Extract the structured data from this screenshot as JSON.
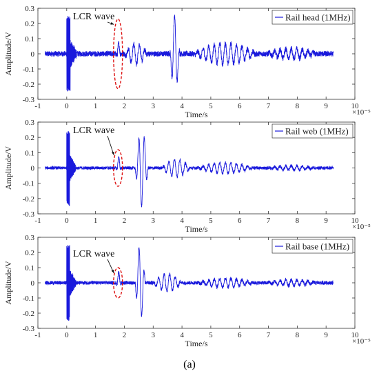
{
  "caption": "(a)",
  "chart_data": [
    {
      "type": "line",
      "xlabel": "Time/s",
      "ylabel": "Amplitude/V",
      "x_exponent": "×10⁻⁵",
      "xlim": [
        -1,
        10
      ],
      "ylim": [
        -0.3,
        0.3
      ],
      "xticks": [
        -1,
        0,
        1,
        2,
        3,
        4,
        5,
        6,
        7,
        8,
        9,
        10
      ],
      "yticks": [
        0.3,
        0.2,
        0.1,
        0,
        -0.1,
        -0.2,
        -0.3
      ],
      "series": [
        {
          "name": "Rail head (1MHz)",
          "color": "#1a1adc"
        }
      ],
      "annotation": {
        "text": "LCR wave",
        "at_x": 1.78,
        "ellipse_half_height": 0.23
      },
      "waveform": {
        "t_start": -0.75,
        "t_end": 9.25,
        "noise_amplitude": 0.018,
        "pulse": {
          "t": [
            0.0,
            0.12
          ],
          "amplitude": 0.25
        },
        "packets": [
          {
            "center": 1.8,
            "width": 0.15,
            "amplitude": 0.07
          },
          {
            "center": 2.4,
            "width": 0.8,
            "amplitude": 0.07
          },
          {
            "center": 3.75,
            "width": 0.35,
            "amplitude": 0.25
          },
          {
            "center": 5.5,
            "width": 2.2,
            "amplitude": 0.07
          },
          {
            "center": 7.8,
            "width": 1.8,
            "amplitude": 0.035
          }
        ]
      }
    },
    {
      "type": "line",
      "xlabel": "Time/s",
      "ylabel": "Amplitude/V",
      "x_exponent": "×10⁻⁵",
      "xlim": [
        -1,
        10
      ],
      "ylim": [
        -0.3,
        0.3
      ],
      "xticks": [
        -1,
        0,
        1,
        2,
        3,
        4,
        5,
        6,
        7,
        8,
        9,
        10
      ],
      "yticks": [
        0.3,
        0.2,
        0.1,
        0,
        -0.1,
        -0.2,
        -0.3
      ],
      "series": [
        {
          "name": "Rail web (1MHz)",
          "color": "#1a1adc"
        }
      ],
      "annotation": {
        "text": "LCR wave",
        "at_x": 1.78,
        "ellipse_half_height": 0.12
      },
      "waveform": {
        "t_start": -0.75,
        "t_end": 9.25,
        "noise_amplitude": 0.01,
        "pulse": {
          "t": [
            0.0,
            0.1
          ],
          "amplitude": 0.25
        },
        "packets": [
          {
            "center": 1.8,
            "width": 0.15,
            "amplitude": 0.07
          },
          {
            "center": 2.6,
            "width": 0.45,
            "amplitude": 0.25
          },
          {
            "center": 3.8,
            "width": 1.0,
            "amplitude": 0.06
          },
          {
            "center": 5.5,
            "width": 2.0,
            "amplitude": 0.035
          },
          {
            "center": 7.8,
            "width": 1.8,
            "amplitude": 0.015
          }
        ]
      }
    },
    {
      "type": "line",
      "xlabel": "Time/s",
      "ylabel": "Amplitude/V",
      "x_exponent": "×10⁻⁵",
      "xlim": [
        -1,
        10
      ],
      "ylim": [
        -0.3,
        0.3
      ],
      "xticks": [
        -1,
        0,
        1,
        2,
        3,
        4,
        5,
        6,
        7,
        8,
        9,
        10
      ],
      "yticks": [
        0.3,
        0.2,
        0.1,
        0,
        -0.1,
        -0.2,
        -0.3
      ],
      "series": [
        {
          "name": "Rail base (1MHz)",
          "color": "#1a1adc"
        }
      ],
      "annotation": {
        "text": "LCR wave",
        "at_x": 1.78,
        "ellipse_half_height": 0.1
      },
      "waveform": {
        "t_start": -0.75,
        "t_end": 9.25,
        "noise_amplitude": 0.012,
        "pulse": {
          "t": [
            0.0,
            0.1
          ],
          "amplitude": 0.25
        },
        "packets": [
          {
            "center": 1.8,
            "width": 0.15,
            "amplitude": 0.07
          },
          {
            "center": 2.55,
            "width": 0.35,
            "amplitude": 0.25
          },
          {
            "center": 3.5,
            "width": 1.0,
            "amplitude": 0.06
          },
          {
            "center": 5.5,
            "width": 2.0,
            "amplitude": 0.03
          },
          {
            "center": 7.8,
            "width": 1.8,
            "amplitude": 0.02
          }
        ]
      }
    }
  ]
}
